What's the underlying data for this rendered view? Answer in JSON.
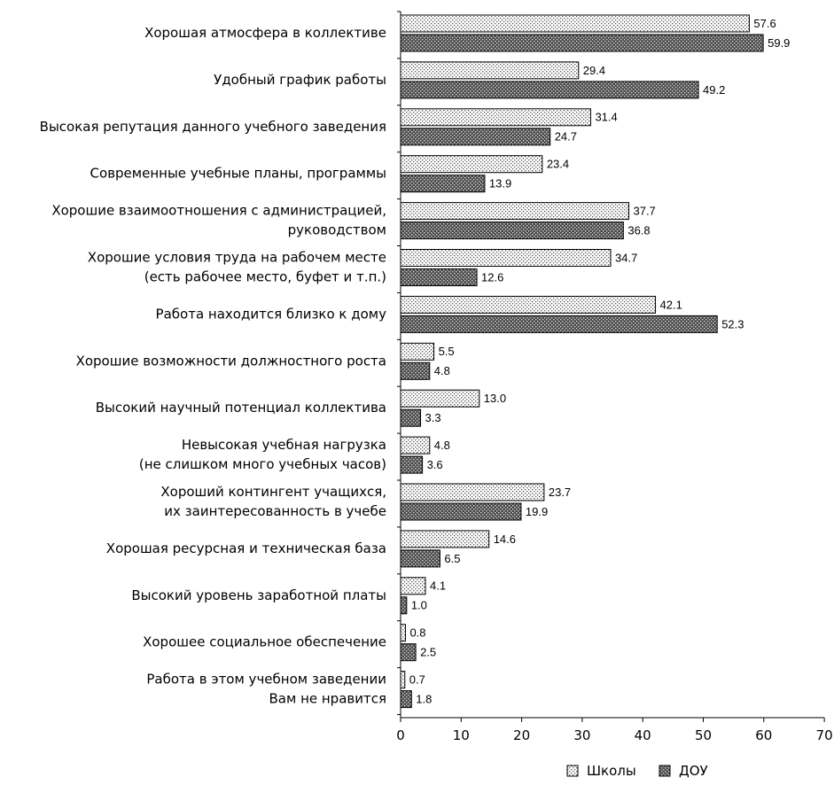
{
  "chart_data": {
    "type": "bar",
    "orientation": "horizontal",
    "categories": [
      [
        "Хорошая атмосфера в коллективе"
      ],
      [
        "Удобный график работы"
      ],
      [
        "Высокая репутация данного учебного заведения"
      ],
      [
        "Современные учебные планы, программы"
      ],
      [
        "Хорошие взаимоотношения с администрацией,",
        "руководством"
      ],
      [
        "Хорошие условия труда на рабочем месте",
        "(есть рабочее место, буфет и т.п.)"
      ],
      [
        "Работа находится близко к дому"
      ],
      [
        "Хорошие возможности должностного роста"
      ],
      [
        "Высокий научный потенциал коллектива"
      ],
      [
        "Невысокая учебная нагрузка",
        "(не слишком много учебных часов)"
      ],
      [
        "Хороший контингент учащихся,",
        "их заинтересованность в учебе"
      ],
      [
        "Хорошая ресурсная и техническая база"
      ],
      [
        "Высокий уровень заработной платы"
      ],
      [
        "Хорошее социальное обеспечение"
      ],
      [
        "Работа в этом учебном заведении",
        "Вам не нравится"
      ]
    ],
    "series": [
      {
        "name": "Школы",
        "values": [
          57.6,
          29.4,
          31.4,
          23.4,
          37.7,
          34.7,
          42.1,
          5.5,
          13.0,
          4.8,
          23.7,
          14.6,
          4.1,
          0.8,
          0.7
        ],
        "labels": [
          "57.6",
          "29.4",
          "31.4",
          "23.4",
          "37.7",
          "34.7",
          "42.1",
          "5.5",
          "13.0",
          "4.8",
          "23.7",
          "14.6",
          "4.1",
          "0.8",
          "0.7"
        ]
      },
      {
        "name": "ДОУ",
        "values": [
          59.9,
          49.2,
          24.7,
          13.9,
          36.8,
          12.6,
          52.3,
          4.8,
          3.3,
          3.6,
          19.9,
          6.5,
          1.0,
          2.5,
          1.8
        ],
        "labels": [
          "59.9",
          "49.2",
          "24.7",
          "13.9",
          "36.8",
          "12.6",
          "52.3",
          "4.8",
          "3.3",
          "3.6",
          "19.9",
          "6.5",
          "1.0",
          "2.5",
          "1.8"
        ]
      }
    ],
    "xlim": [
      0,
      70
    ],
    "xticks": [
      "0",
      "10",
      "20",
      "30",
      "40",
      "50",
      "60",
      "70"
    ],
    "legend_position": "bottom-right",
    "grid": false
  }
}
